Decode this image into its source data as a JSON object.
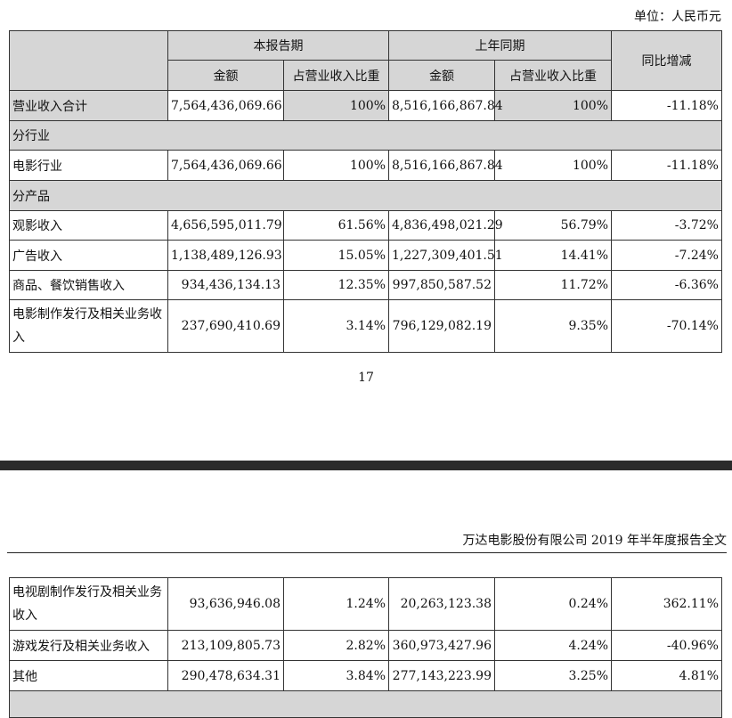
{
  "unit": "单位：人民币元",
  "header": {
    "current_period": "本报告期",
    "prior_period": "上年同期",
    "amount": "金额",
    "ratio": "占营业收入比重",
    "yoy": "同比增减"
  },
  "total": {
    "label": "营业收入合计",
    "cur": "7,564,436,069.66",
    "cur_pct": "100%",
    "prev": "8,516,166,867.84",
    "prev_pct": "100%",
    "yoy": "-11.18%"
  },
  "section_industry": "分行业",
  "industry": {
    "label": "电影行业",
    "cur": "7,564,436,069.66",
    "cur_pct": "100%",
    "prev": "8,516,166,867.84",
    "prev_pct": "100%",
    "yoy": "-11.18%"
  },
  "section_product": "分产品",
  "products": [
    {
      "label": "观影收入",
      "cur": "4,656,595,011.79",
      "cur_pct": "61.56%",
      "prev": "4,836,498,021.29",
      "prev_pct": "56.79%",
      "yoy": "-3.72%"
    },
    {
      "label": "广告收入",
      "cur": "1,138,489,126.93",
      "cur_pct": "15.05%",
      "prev": "1,227,309,401.51",
      "prev_pct": "14.41%",
      "yoy": "-7.24%"
    },
    {
      "label": "商品、餐饮销售收入",
      "cur": "934,436,134.13",
      "cur_pct": "12.35%",
      "prev": "997,850,587.52",
      "prev_pct": "11.72%",
      "yoy": "-6.36%"
    },
    {
      "label": "电影制作发行及相关业务收入",
      "cur": "237,690,410.69",
      "cur_pct": "3.14%",
      "prev": "796,129,082.19",
      "prev_pct": "9.35%",
      "yoy": "-70.14%"
    }
  ],
  "page_number": "17",
  "running_header": "万达电影股份有限公司 2019 年半年度报告全文",
  "products_cont": [
    {
      "label": "电视剧制作发行及相关业务收入",
      "cur": "93,636,946.08",
      "cur_pct": "1.24%",
      "prev": "20,263,123.38",
      "prev_pct": "0.24%",
      "yoy": "362.11%"
    },
    {
      "label": "游戏发行及相关业务收入",
      "cur": "213,109,805.73",
      "cur_pct": "2.82%",
      "prev": "360,973,427.96",
      "prev_pct": "4.24%",
      "yoy": "-40.96%"
    },
    {
      "label": "其他",
      "cur": "290,478,634.31",
      "cur_pct": "3.84%",
      "prev": "277,143,223.99",
      "prev_pct": "3.25%",
      "yoy": "4.81%"
    }
  ]
}
